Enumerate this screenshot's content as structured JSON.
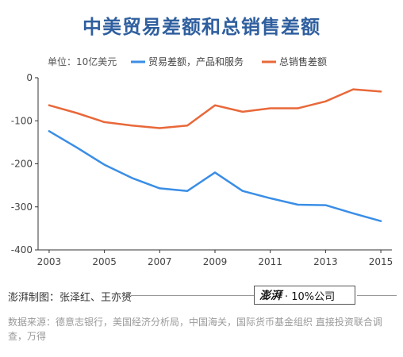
{
  "header": {
    "title": "中美贸易差额和总销售差额"
  },
  "chart_data": {
    "type": "line",
    "unit_label": "单位：10亿美元",
    "x": [
      2003,
      2004,
      2005,
      2006,
      2007,
      2008,
      2009,
      2010,
      2011,
      2012,
      2013,
      2014,
      2015
    ],
    "xticks": [
      "2003",
      "2005",
      "2007",
      "2009",
      "2011",
      "2013",
      "2015"
    ],
    "yticks": [
      "0",
      "-100",
      "-200",
      "-300",
      "-400"
    ],
    "ylim": [
      -400,
      0
    ],
    "xlim": [
      2002.6,
      2015.4
    ],
    "grid": false,
    "legend_position": "top",
    "series": [
      {
        "name": "贸易差额，产品和服务",
        "color": "#3a8ee6",
        "values": [
          -124,
          -162,
          -202,
          -233,
          -257,
          -263,
          -220,
          -263,
          -280,
          -295,
          -296,
          -315,
          -333
        ]
      },
      {
        "name": "总销售差额",
        "color": "#e8683a",
        "values": [
          -64,
          -82,
          -103,
          -111,
          -117,
          -111,
          -64,
          -79,
          -71,
          -71,
          -55,
          -27,
          -32
        ]
      }
    ]
  },
  "footer": {
    "credit": "澎湃制图：张泽红、王亦赟",
    "brand_logo": "澎湃",
    "brand_text": "· 10%公司",
    "source": "数据来源：德意志银行，美国经济分析局，中国海关，国际货币基金组织 直接投资联合调查，万得"
  }
}
